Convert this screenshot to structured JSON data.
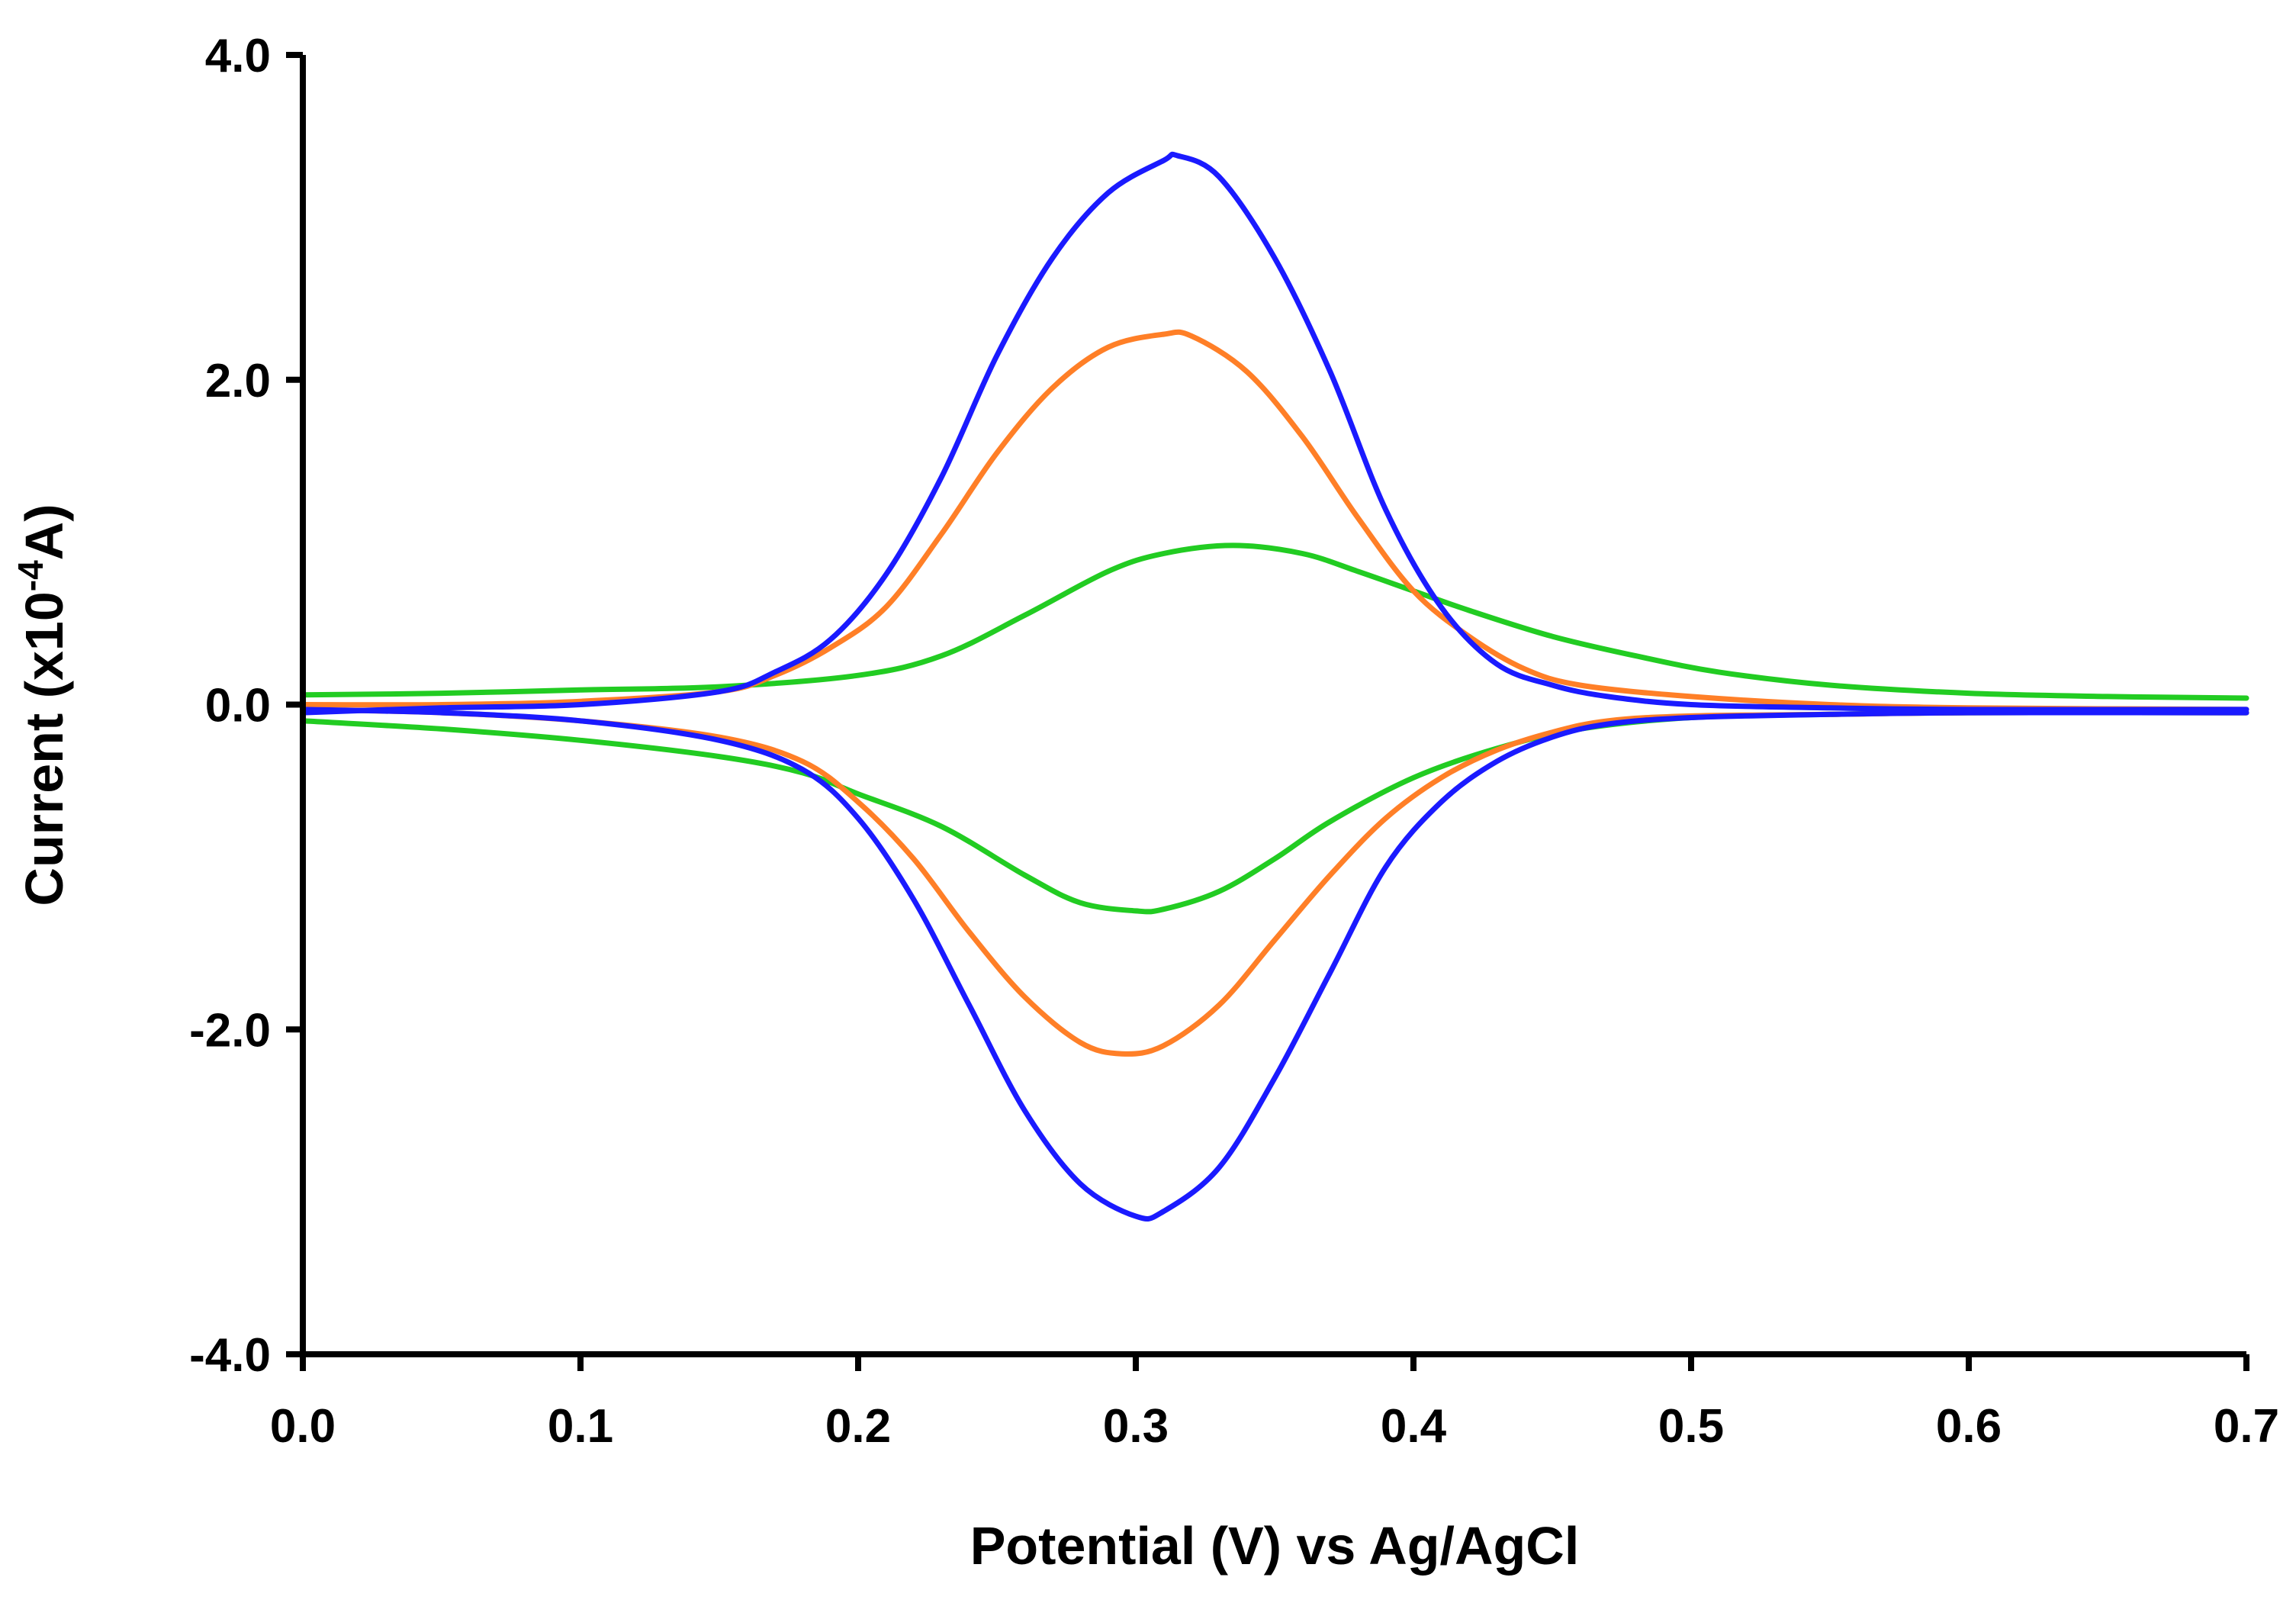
{
  "chart_data": {
    "type": "line",
    "title": "",
    "xlabel": "Potential (V) vs Ag/AgCl",
    "ylabel": {
      "prefix": "Current (x10",
      "superscript": "-4",
      "suffix": "A)"
    },
    "xlim": [
      0.0,
      0.7
    ],
    "ylim": [
      -4.0,
      4.0
    ],
    "xticks": [
      0.0,
      0.1,
      0.2,
      0.3,
      0.4,
      0.5,
      0.6,
      0.7
    ],
    "xtick_labels": [
      "0.0",
      "0.1",
      "0.2",
      "0.3",
      "0.4",
      "0.5",
      "0.6",
      "0.7"
    ],
    "yticks": [
      4.0,
      2.0,
      0.0,
      -2.0,
      -4.0
    ],
    "ytick_labels": [
      "4.0",
      "2.0",
      "0.0",
      "-2.0",
      "-4.0"
    ],
    "grid": false,
    "legend": "none",
    "series": [
      {
        "name": "blue",
        "color": "#1a1aff",
        "anodic": {
          "x": [
            0.0,
            0.05,
            0.1,
            0.15,
            0.17,
            0.19,
            0.21,
            0.23,
            0.25,
            0.27,
            0.29,
            0.31,
            0.315,
            0.33,
            0.35,
            0.37,
            0.39,
            0.41,
            0.43,
            0.45,
            0.47,
            0.5,
            0.55,
            0.6,
            0.7
          ],
          "y": [
            -0.05,
            -0.02,
            0.0,
            0.08,
            0.2,
            0.4,
            0.8,
            1.4,
            2.15,
            2.75,
            3.15,
            3.35,
            3.38,
            3.25,
            2.75,
            2.05,
            1.2,
            0.6,
            0.25,
            0.12,
            0.05,
            0.0,
            -0.02,
            -0.03,
            -0.03
          ]
        },
        "cathodic": {
          "x": [
            0.0,
            0.05,
            0.1,
            0.15,
            0.18,
            0.2,
            0.22,
            0.24,
            0.26,
            0.28,
            0.3,
            0.31,
            0.33,
            0.35,
            0.37,
            0.39,
            0.41,
            0.43,
            0.45,
            0.47,
            0.5,
            0.55,
            0.6,
            0.7
          ],
          "y": [
            -0.03,
            -0.05,
            -0.1,
            -0.22,
            -0.4,
            -0.7,
            -1.2,
            -1.85,
            -2.5,
            -2.95,
            -3.15,
            -3.12,
            -2.85,
            -2.3,
            -1.65,
            -1.0,
            -0.6,
            -0.35,
            -0.2,
            -0.12,
            -0.08,
            -0.06,
            -0.05,
            -0.05
          ]
        }
      },
      {
        "name": "orange",
        "color": "#ff7f27",
        "anodic": {
          "x": [
            0.0,
            0.05,
            0.1,
            0.15,
            0.17,
            0.19,
            0.21,
            0.23,
            0.25,
            0.27,
            0.29,
            0.31,
            0.32,
            0.34,
            0.36,
            0.38,
            0.4,
            0.42,
            0.44,
            0.46,
            0.5,
            0.55,
            0.6,
            0.7
          ],
          "y": [
            0.0,
            0.0,
            0.02,
            0.08,
            0.18,
            0.35,
            0.6,
            1.05,
            1.55,
            1.95,
            2.2,
            2.28,
            2.27,
            2.05,
            1.65,
            1.15,
            0.7,
            0.42,
            0.22,
            0.12,
            0.05,
            0.0,
            -0.02,
            -0.03
          ]
        },
        "cathodic": {
          "x": [
            0.0,
            0.05,
            0.1,
            0.15,
            0.18,
            0.2,
            0.22,
            0.24,
            0.26,
            0.28,
            0.295,
            0.31,
            0.33,
            0.35,
            0.37,
            0.39,
            0.41,
            0.43,
            0.45,
            0.47,
            0.5,
            0.55,
            0.6,
            0.7
          ],
          "y": [
            -0.03,
            -0.05,
            -0.1,
            -0.2,
            -0.35,
            -0.6,
            -0.95,
            -1.4,
            -1.8,
            -2.08,
            -2.15,
            -2.1,
            -1.85,
            -1.45,
            -1.05,
            -0.7,
            -0.45,
            -0.28,
            -0.17,
            -0.1,
            -0.07,
            -0.06,
            -0.05,
            -0.05
          ]
        }
      },
      {
        "name": "green",
        "color": "#22cc22",
        "anodic": {
          "x": [
            0.0,
            0.05,
            0.1,
            0.15,
            0.2,
            0.23,
            0.26,
            0.29,
            0.31,
            0.335,
            0.36,
            0.38,
            0.4,
            0.42,
            0.45,
            0.48,
            0.51,
            0.55,
            0.6,
            0.65,
            0.7
          ],
          "y": [
            0.06,
            0.07,
            0.09,
            0.11,
            0.18,
            0.3,
            0.55,
            0.82,
            0.93,
            0.98,
            0.93,
            0.82,
            0.7,
            0.58,
            0.42,
            0.3,
            0.2,
            0.12,
            0.07,
            0.05,
            0.04
          ]
        },
        "cathodic": {
          "x": [
            0.0,
            0.05,
            0.1,
            0.15,
            0.18,
            0.2,
            0.23,
            0.26,
            0.28,
            0.3,
            0.31,
            0.33,
            0.35,
            0.37,
            0.4,
            0.43,
            0.46,
            0.5,
            0.55,
            0.6,
            0.7
          ],
          "y": [
            -0.1,
            -0.15,
            -0.22,
            -0.32,
            -0.42,
            -0.55,
            -0.75,
            -1.05,
            -1.22,
            -1.27,
            -1.26,
            -1.15,
            -0.95,
            -0.72,
            -0.45,
            -0.27,
            -0.15,
            -0.08,
            -0.06,
            -0.05,
            -0.05
          ]
        }
      }
    ]
  }
}
